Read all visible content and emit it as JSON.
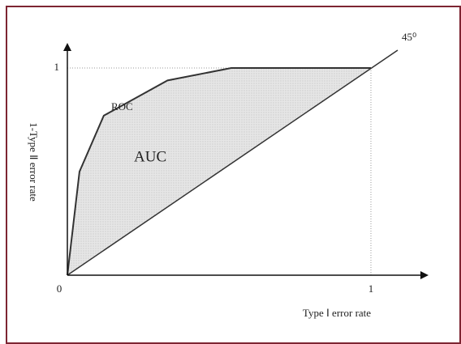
{
  "chart_data": {
    "type": "roc",
    "series": [
      {
        "name": "ROC",
        "color": "#333333",
        "x": [
          0,
          0.04,
          0.12,
          0.33,
          0.54,
          1
        ],
        "values": [
          0,
          0.5,
          0.77,
          0.94,
          1,
          1
        ]
      }
    ],
    "fill_label": "AUC",
    "fill_color": "#e4e4e4",
    "reference_label": "45⁰",
    "xlabel": "Type Ⅰ error rate",
    "ylabel": "1-Type Ⅱ error rate",
    "xlim": [
      0,
      1
    ],
    "ylim": [
      0,
      1
    ],
    "xticks": [
      0,
      1
    ],
    "yticks": [
      1
    ]
  }
}
